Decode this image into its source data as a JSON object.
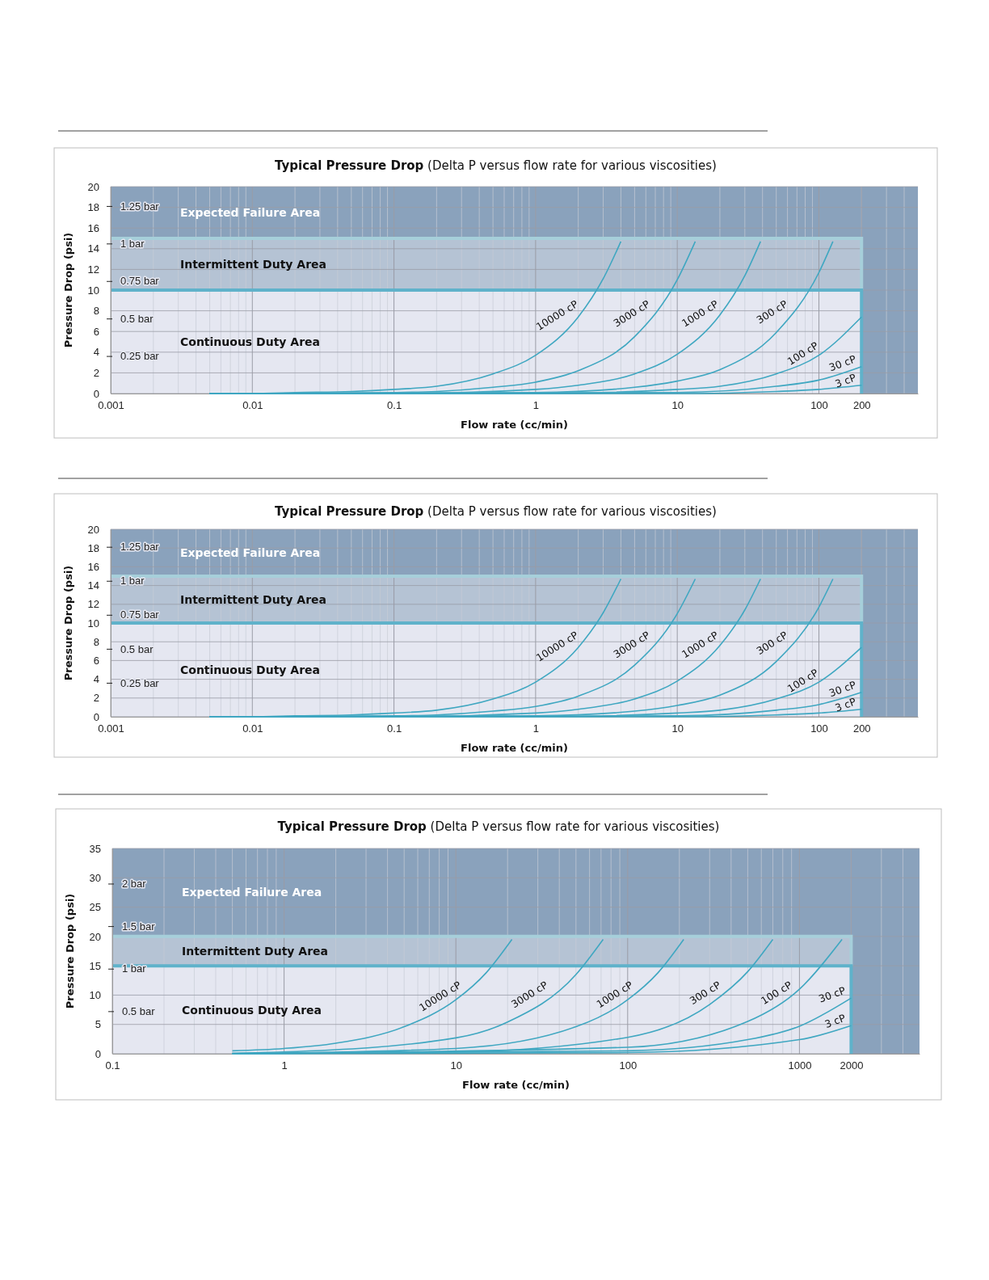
{
  "chart_data": [
    {
      "type": "line",
      "title": "Typical Pressure Drop",
      "subtitle": "(Delta P versus flow rate for various viscosities)",
      "xlabel": "Flow rate (cc/min)",
      "ylabel": "Pressure Drop (psi)",
      "log": "x",
      "grid": true,
      "xlim": [
        0.001,
        500
      ],
      "xticks": [
        0.001,
        0.01,
        0.1,
        1,
        10,
        100,
        200
      ],
      "ylim": [
        0,
        20
      ],
      "yticks": [
        0,
        2,
        4,
        6,
        8,
        10,
        12,
        14,
        16,
        18,
        20
      ],
      "y2lim": [
        0,
        1.379
      ],
      "y2ticks": [
        {
          "value": 0.25,
          "label": "0.25 bar"
        },
        {
          "value": 0.5,
          "label": "0.5 bar"
        },
        {
          "value": 0.75,
          "label": "0.75 bar"
        },
        {
          "value": 1,
          "label": "1 bar"
        },
        {
          "value": 1.25,
          "label": "1.25 bar"
        }
      ],
      "bands": [
        {
          "axis": "y",
          "from": 0,
          "to": 20,
          "label": "Expected Failure Area",
          "color": "#8aa2bc"
        },
        {
          "axis": "y",
          "from": 10,
          "to": 15,
          "label": "Intermittent Duty Area",
          "color": "#b5c3d4"
        },
        {
          "axis": "y",
          "from": 0,
          "to": 10,
          "label": "Continuous Duty Area",
          "color": "#e5e7f1"
        }
      ],
      "series": [
        {
          "name": "10000 cP",
          "color": "#3fa7c1",
          "x": [
            0.005,
            0.01,
            0.02,
            0.05,
            0.1,
            0.2,
            0.5,
            1,
            2,
            3,
            4
          ],
          "values": [
            0,
            0,
            0.1,
            0.2,
            0.4,
            0.7,
            1.9,
            3.7,
            7.4,
            11.1,
            14.7
          ]
        },
        {
          "name": "3000 cP",
          "color": "#3fa7c1",
          "x": [
            0.005,
            0.01,
            0.1,
            0.2,
            0.5,
            1,
            2,
            5,
            10,
            13.4
          ],
          "values": [
            0,
            0,
            0.1,
            0.2,
            0.6,
            1.1,
            2.2,
            5.5,
            11,
            14.7
          ]
        },
        {
          "name": "1000 cP",
          "color": "#3fa7c1",
          "x": [
            0.005,
            0.1,
            1,
            2,
            5,
            10,
            20,
            30,
            38.7
          ],
          "values": [
            0,
            0,
            0.4,
            0.8,
            1.9,
            3.8,
            7.6,
            11.4,
            14.7
          ]
        },
        {
          "name": "300 cP",
          "color": "#3fa7c1",
          "x": [
            0.005,
            1,
            5,
            10,
            20,
            50,
            100,
            125.6
          ],
          "values": [
            0,
            0.1,
            0.6,
            1.2,
            2.3,
            5.9,
            11.7,
            14.7
          ]
        },
        {
          "name": "100 cP",
          "color": "#3fa7c1",
          "x": [
            0.005,
            1,
            10,
            20,
            50,
            100,
            200
          ],
          "values": [
            0,
            0,
            0.4,
            0.7,
            1.9,
            3.7,
            7.4
          ]
        },
        {
          "name": "30 cP",
          "color": "#3fa7c1",
          "x": [
            0.005,
            10,
            50,
            100,
            200
          ],
          "values": [
            0,
            0.1,
            0.7,
            1.3,
            2.6
          ]
        },
        {
          "name": "3 cP",
          "color": "#3fa7c1",
          "x": [
            0.005,
            10,
            50,
            100,
            200
          ],
          "values": [
            0,
            0,
            0.2,
            0.4,
            0.8
          ]
        }
      ]
    },
    {
      "type": "line",
      "title": "Typical Pressure Drop",
      "subtitle": "(Delta P versus flow rate for various viscosities)",
      "xlabel": "Flow rate (cc/min)",
      "ylabel": "Pressure Drop (psi)",
      "log": "x",
      "grid": true,
      "xlim": [
        0.001,
        500
      ],
      "xticks": [
        0.001,
        0.01,
        0.1,
        1,
        10,
        100,
        200
      ],
      "ylim": [
        0,
        20
      ],
      "yticks": [
        0,
        2,
        4,
        6,
        8,
        10,
        12,
        14,
        16,
        18,
        20
      ],
      "y2lim": [
        0,
        1.379
      ],
      "y2ticks": [
        {
          "value": 0.25,
          "label": "0.25 bar"
        },
        {
          "value": 0.5,
          "label": "0.5 bar"
        },
        {
          "value": 0.75,
          "label": "0.75 bar"
        },
        {
          "value": 1,
          "label": "1 bar"
        },
        {
          "value": 1.25,
          "label": "1.25 bar"
        }
      ],
      "bands": [
        {
          "axis": "y",
          "from": 0,
          "to": 20,
          "label": "Expected Failure Area",
          "color": "#8aa2bc"
        },
        {
          "axis": "y",
          "from": 10,
          "to": 15,
          "label": "Intermittent Duty Area",
          "color": "#b5c3d4"
        },
        {
          "axis": "y",
          "from": 0,
          "to": 10,
          "label": "Continuous Duty Area",
          "color": "#e5e7f1"
        }
      ],
      "series": [
        {
          "name": "10000 cP",
          "color": "#3fa7c1",
          "x": [
            0.005,
            0.01,
            0.02,
            0.05,
            0.1,
            0.2,
            0.5,
            1,
            2,
            3,
            4
          ],
          "values": [
            0,
            0,
            0.1,
            0.2,
            0.4,
            0.7,
            1.9,
            3.7,
            7.4,
            11.1,
            14.7
          ]
        },
        {
          "name": "3000 cP",
          "color": "#3fa7c1",
          "x": [
            0.005,
            0.01,
            0.1,
            0.2,
            0.5,
            1,
            2,
            5,
            10,
            13.4
          ],
          "values": [
            0,
            0,
            0.1,
            0.2,
            0.6,
            1.1,
            2.2,
            5.5,
            11,
            14.7
          ]
        },
        {
          "name": "1000 cP",
          "color": "#3fa7c1",
          "x": [
            0.005,
            0.1,
            1,
            2,
            5,
            10,
            20,
            30,
            38.7
          ],
          "values": [
            0,
            0,
            0.4,
            0.8,
            1.9,
            3.8,
            7.6,
            11.4,
            14.7
          ]
        },
        {
          "name": "300 cP",
          "color": "#3fa7c1",
          "x": [
            0.005,
            1,
            5,
            10,
            20,
            50,
            100,
            125.6
          ],
          "values": [
            0,
            0.1,
            0.6,
            1.2,
            2.3,
            5.9,
            11.7,
            14.7
          ]
        },
        {
          "name": "100 cP",
          "color": "#3fa7c1",
          "x": [
            0.005,
            1,
            10,
            20,
            50,
            100,
            200
          ],
          "values": [
            0,
            0,
            0.4,
            0.7,
            1.9,
            3.7,
            7.4
          ]
        },
        {
          "name": "30 cP",
          "color": "#3fa7c1",
          "x": [
            0.005,
            10,
            50,
            100,
            200
          ],
          "values": [
            0,
            0.1,
            0.7,
            1.3,
            2.6
          ]
        },
        {
          "name": "3 cP",
          "color": "#3fa7c1",
          "x": [
            0.005,
            10,
            50,
            100,
            200
          ],
          "values": [
            0,
            0,
            0.2,
            0.4,
            0.8
          ]
        }
      ]
    },
    {
      "type": "line",
      "title": "Typical Pressure Drop",
      "subtitle": "(Delta P versus flow rate for various viscosities)",
      "xlabel": "Flow rate (cc/min)",
      "ylabel": "Pressure Drop (psi)",
      "log": "x",
      "grid": true,
      "xlim": [
        0.1,
        5000
      ],
      "xticks": [
        0.1,
        1,
        10,
        100,
        1000,
        2000
      ],
      "ylim": [
        0,
        35
      ],
      "yticks": [
        0,
        5,
        10,
        15,
        20,
        25,
        30,
        35
      ],
      "y2lim": [
        0,
        2.413
      ],
      "y2ticks": [
        {
          "value": 0.5,
          "label": "0.5 bar"
        },
        {
          "value": 1,
          "label": "1 bar"
        },
        {
          "value": 1.5,
          "label": "1.5 bar"
        },
        {
          "value": 2,
          "label": "2 bar"
        }
      ],
      "bands": [
        {
          "axis": "y",
          "from": 0,
          "to": 35,
          "label": "Expected Failure Area",
          "color": "#8aa2bc"
        },
        {
          "axis": "y",
          "from": 15,
          "to": 20,
          "label": "Intermittent Duty Area",
          "color": "#b5c3d4"
        },
        {
          "axis": "y",
          "from": 0,
          "to": 15,
          "label": "Continuous Duty Area",
          "color": "#e5e7f1"
        }
      ],
      "series": [
        {
          "name": "10000 cP",
          "color": "#3fa7c1",
          "x": [
            0.5,
            1,
            2,
            5,
            10,
            15,
            21.2
          ],
          "values": [
            0.5,
            0.9,
            1.8,
            4.6,
            9.2,
            13.8,
            19.5
          ]
        },
        {
          "name": "3000 cP",
          "color": "#3fa7c1",
          "x": [
            0.5,
            1,
            10,
            20,
            50,
            72
          ],
          "values": [
            0.1,
            0.3,
            2.7,
            5.4,
            13.5,
            19.5
          ]
        },
        {
          "name": "1000 cP",
          "color": "#3fa7c1",
          "x": [
            0.5,
            10,
            50,
            100,
            150,
            212
          ],
          "values": [
            0,
            0.9,
            4.6,
            9.2,
            13.8,
            19.5
          ]
        },
        {
          "name": "300 cP",
          "color": "#3fa7c1",
          "x": [
            0.5,
            10,
            100,
            300,
            500,
            700
          ],
          "values": [
            0,
            0.3,
            2.8,
            8.4,
            14,
            19.5
          ]
        },
        {
          "name": "100 cP",
          "color": "#3fa7c1",
          "x": [
            0.5,
            100,
            500,
            1000,
            1770
          ],
          "values": [
            0,
            1.1,
            5.5,
            11,
            19.5
          ]
        },
        {
          "name": "30 cP",
          "color": "#3fa7c1",
          "x": [
            0.5,
            100,
            500,
            1000,
            2000
          ],
          "values": [
            0,
            0.5,
            2.4,
            4.7,
            9.5
          ]
        },
        {
          "name": "3 cP",
          "color": "#3fa7c1",
          "x": [
            0.5,
            100,
            1000,
            2000
          ],
          "values": [
            0,
            0.2,
            2.4,
            4.8
          ]
        }
      ]
    }
  ]
}
